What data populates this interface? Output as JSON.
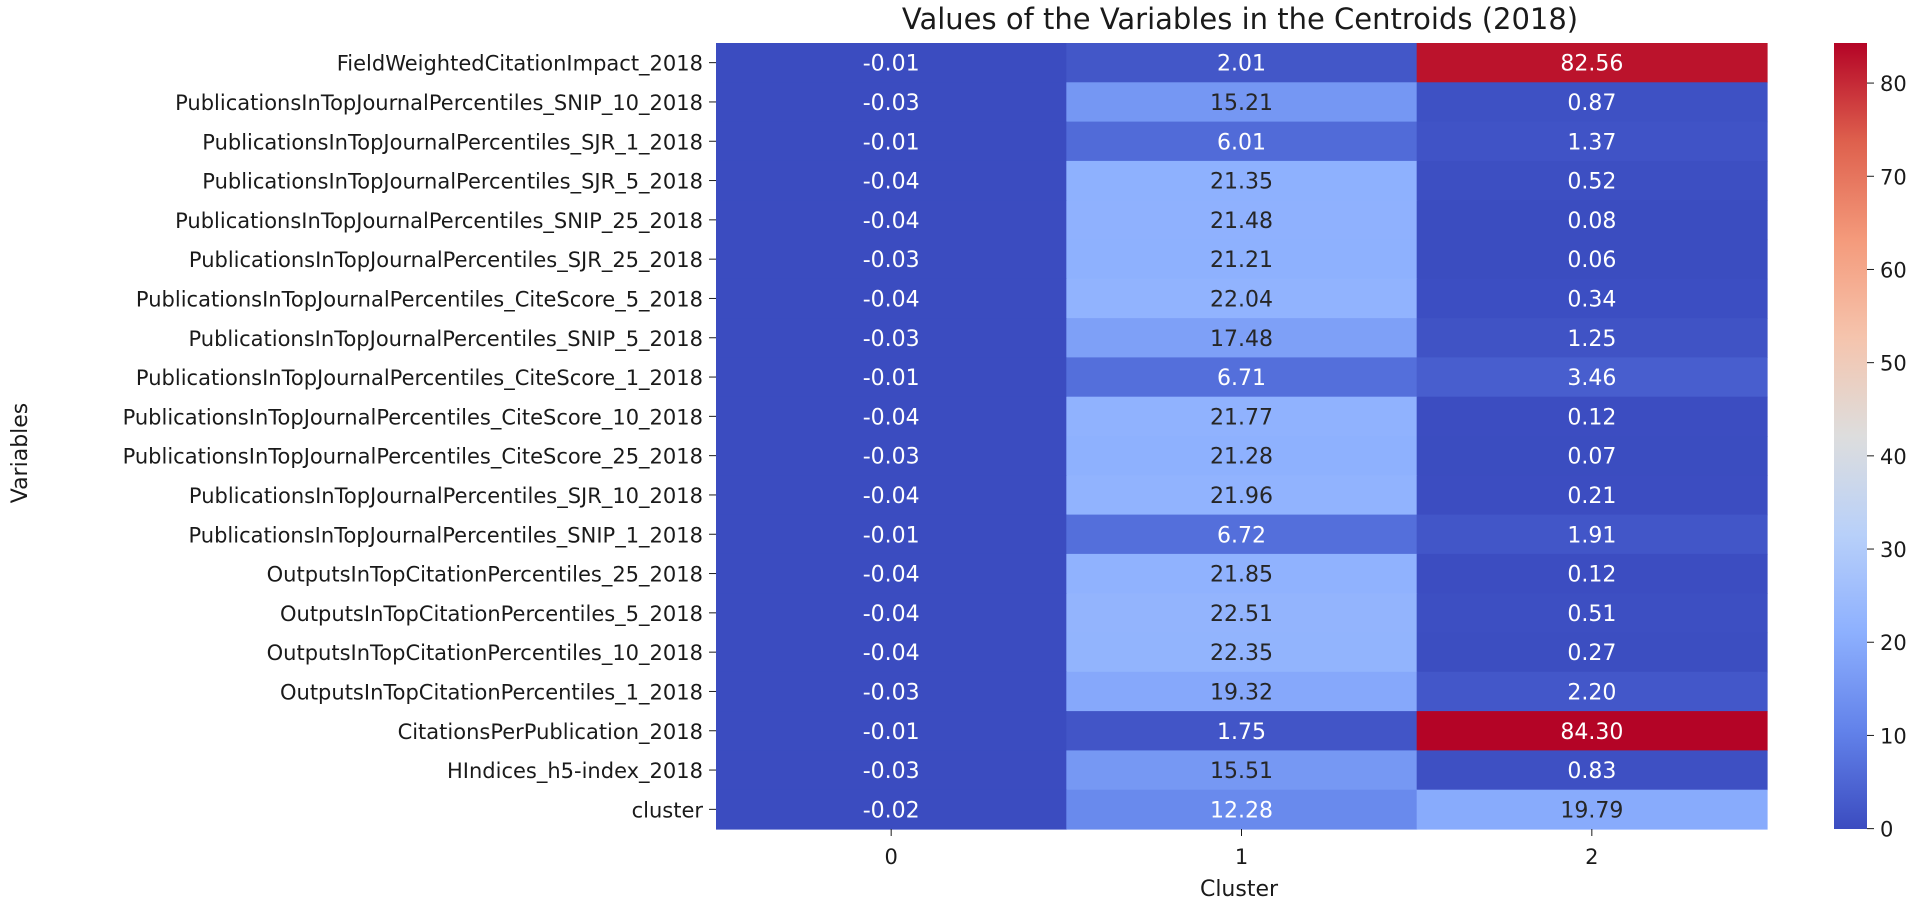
{
  "chart_data": {
    "type": "heatmap",
    "title": "Values of the Variables in the Centroids (2018)",
    "xlabel": "Cluster",
    "ylabel": "Variables",
    "x_categories": [
      "0",
      "1",
      "2"
    ],
    "y_categories": [
      "FieldWeightedCitationImpact_2018",
      "PublicationsInTopJournalPercentiles_SNIP_10_2018",
      "PublicationsInTopJournalPercentiles_SJR_1_2018",
      "PublicationsInTopJournalPercentiles_SJR_5_2018",
      "PublicationsInTopJournalPercentiles_SNIP_25_2018",
      "PublicationsInTopJournalPercentiles_SJR_25_2018",
      "PublicationsInTopJournalPercentiles_CiteScore_5_2018",
      "PublicationsInTopJournalPercentiles_SNIP_5_2018",
      "PublicationsInTopJournalPercentiles_CiteScore_1_2018",
      "PublicationsInTopJournalPercentiles_CiteScore_10_2018",
      "PublicationsInTopJournalPercentiles_CiteScore_25_2018",
      "PublicationsInTopJournalPercentiles_SJR_10_2018",
      "PublicationsInTopJournalPercentiles_SNIP_1_2018",
      "OutputsInTopCitationPercentiles_25_2018",
      "OutputsInTopCitationPercentiles_5_2018",
      "OutputsInTopCitationPercentiles_10_2018",
      "OutputsInTopCitationPercentiles_1_2018",
      "CitationsPerPublication_2018",
      "HIndices_h5-index_2018",
      "cluster"
    ],
    "values": [
      [
        -0.01,
        2.01,
        82.56
      ],
      [
        -0.03,
        15.21,
        0.87
      ],
      [
        -0.01,
        6.01,
        1.37
      ],
      [
        -0.04,
        21.35,
        0.52
      ],
      [
        -0.04,
        21.48,
        0.08
      ],
      [
        -0.03,
        21.21,
        0.06
      ],
      [
        -0.04,
        22.04,
        0.34
      ],
      [
        -0.03,
        17.48,
        1.25
      ],
      [
        -0.01,
        6.71,
        3.46
      ],
      [
        -0.04,
        21.77,
        0.12
      ],
      [
        -0.03,
        21.28,
        0.07
      ],
      [
        -0.04,
        21.96,
        0.21
      ],
      [
        -0.01,
        6.72,
        1.91
      ],
      [
        -0.04,
        21.85,
        0.12
      ],
      [
        -0.04,
        22.51,
        0.51
      ],
      [
        -0.04,
        22.35,
        0.27
      ],
      [
        -0.03,
        19.32,
        2.2
      ],
      [
        -0.01,
        1.75,
        84.3
      ],
      [
        -0.03,
        15.51,
        0.83
      ],
      [
        -0.02,
        12.28,
        19.79
      ]
    ],
    "value_labels": [
      [
        "-0.01",
        "2.01",
        "82.56"
      ],
      [
        "-0.03",
        "15.21",
        "0.87"
      ],
      [
        "-0.01",
        "6.01",
        "1.37"
      ],
      [
        "-0.04",
        "21.35",
        "0.52"
      ],
      [
        "-0.04",
        "21.48",
        "0.08"
      ],
      [
        "-0.03",
        "21.21",
        "0.06"
      ],
      [
        "-0.04",
        "22.04",
        "0.34"
      ],
      [
        "-0.03",
        "17.48",
        "1.25"
      ],
      [
        "-0.01",
        "6.71",
        "3.46"
      ],
      [
        "-0.04",
        "21.77",
        "0.12"
      ],
      [
        "-0.03",
        "21.28",
        "0.07"
      ],
      [
        "-0.04",
        "21.96",
        "0.21"
      ],
      [
        "-0.01",
        "6.72",
        "1.91"
      ],
      [
        "-0.04",
        "21.85",
        "0.12"
      ],
      [
        "-0.04",
        "22.51",
        "0.51"
      ],
      [
        "-0.04",
        "22.35",
        "0.27"
      ],
      [
        "-0.03",
        "19.32",
        "2.20"
      ],
      [
        "-0.01",
        "1.75",
        "84.30"
      ],
      [
        "-0.03",
        "15.51",
        "0.83"
      ],
      [
        "-0.02",
        "12.28",
        "19.79"
      ]
    ],
    "colormap": "coolwarm",
    "color_range": [
      -0.04,
      84.3
    ],
    "colorbar_ticks": [
      0,
      10,
      20,
      30,
      40,
      50,
      60,
      70,
      80
    ],
    "colorbar_tick_labels": [
      "0",
      "10",
      "20",
      "30",
      "40",
      "50",
      "60",
      "70",
      "80"
    ],
    "grid": false,
    "legend": "colorbar-right"
  }
}
